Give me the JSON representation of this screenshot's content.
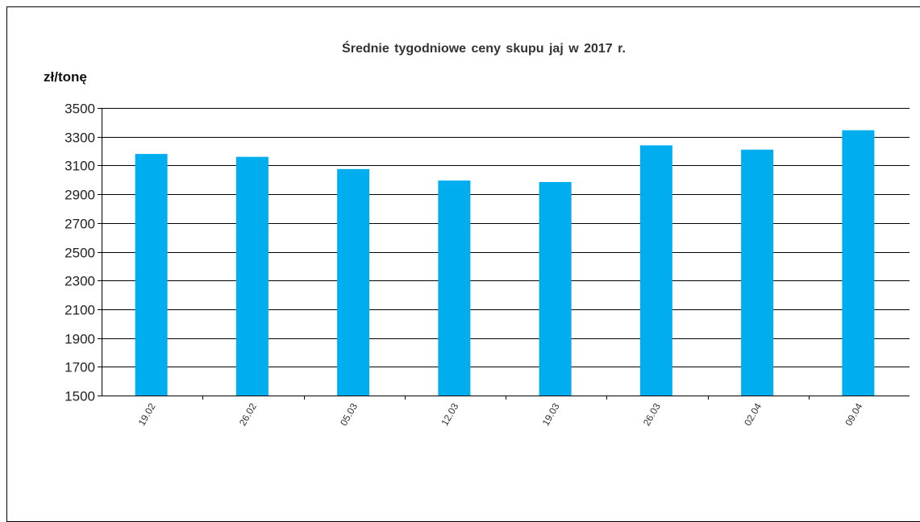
{
  "chart_data": {
    "type": "bar",
    "title": "Średnie  tygodniowe  ceny skupu  jaj w 2017  r.",
    "y_unit_label": "zł/tonę",
    "categories": [
      "19.02",
      "26.02",
      "05.03",
      "12.03",
      "19.03",
      "26.03",
      "02.04",
      "09.04"
    ],
    "values": [
      3180,
      3160,
      3075,
      2995,
      2985,
      3240,
      3210,
      3345
    ],
    "ylim": [
      1500,
      3500
    ],
    "yticks": [
      1500,
      1700,
      1900,
      2100,
      2300,
      2500,
      2700,
      2900,
      3100,
      3300,
      3500
    ],
    "grid": true,
    "legend": "none",
    "bar_color": "#00AEEF"
  }
}
